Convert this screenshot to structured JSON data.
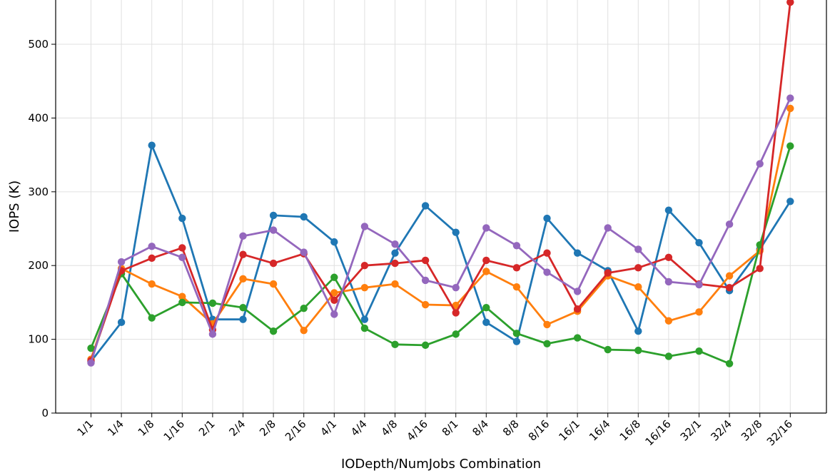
{
  "chart_data": {
    "type": "line",
    "xlabel": "IODepth/NumJobs Combination",
    "ylabel": "IOPS (K)",
    "title": "",
    "ylim": [
      0,
      560
    ],
    "yticks": [
      0,
      100,
      200,
      300,
      400,
      500
    ],
    "grid": true,
    "categories": [
      "1/1",
      "1/4",
      "1/8",
      "1/16",
      "2/1",
      "2/4",
      "2/8",
      "2/16",
      "4/1",
      "4/4",
      "4/8",
      "4/16",
      "8/1",
      "8/4",
      "8/8",
      "8/16",
      "16/1",
      "16/4",
      "16/8",
      "16/16",
      "32/1",
      "32/4",
      "32/8",
      "32/16"
    ],
    "series": [
      {
        "color": "#1f77b4",
        "values": [
          70,
          123,
          363,
          264,
          127,
          127,
          268,
          266,
          232,
          127,
          217,
          281,
          245,
          123,
          97,
          264,
          217,
          193,
          111,
          275,
          231,
          166,
          222,
          287
        ]
      },
      {
        "color": "#ff7f0e",
        "values": [
          73,
          196,
          175,
          158,
          121,
          182,
          175,
          112,
          163,
          170,
          175,
          147,
          146,
          192,
          171,
          120,
          138,
          186,
          171,
          125,
          137,
          186,
          220,
          413
        ]
      },
      {
        "color": "#2ca02c",
        "values": [
          88,
          189,
          129,
          150,
          149,
          143,
          111,
          142,
          184,
          115,
          93,
          92,
          107,
          143,
          108,
          94,
          102,
          86,
          85,
          77,
          84,
          67,
          228,
          362
        ]
      },
      {
        "color": "#d62728",
        "values": [
          71,
          193,
          210,
          224,
          113,
          215,
          203,
          216,
          153,
          200,
          203,
          207,
          136,
          207,
          197,
          217,
          141,
          190,
          197,
          211,
          175,
          170,
          196,
          557
        ]
      },
      {
        "color": "#9467bd",
        "values": [
          68,
          205,
          226,
          211,
          107,
          240,
          248,
          218,
          134,
          253,
          229,
          180,
          170,
          251,
          227,
          191,
          165,
          251,
          222,
          178,
          174,
          256,
          338,
          427
        ]
      }
    ]
  }
}
